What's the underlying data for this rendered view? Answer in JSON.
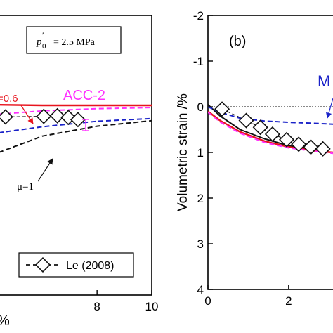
{
  "chart_data": [
    {
      "type": "line",
      "panel": "left (cropped)",
      "xlim": [
        4.4,
        10
      ],
      "ylim": [
        -0.9,
        4.2
      ],
      "x_ticks": [
        {
          "value": 8,
          "label": "8"
        },
        {
          "value": 10,
          "label": "10"
        }
      ],
      "x_axis_label_fragment": "%",
      "annotations": {
        "pressure_box": {
          "symbol": "p",
          "super": "′",
          "sub": "0",
          "rest": "= 2.5 MPa"
        },
        "mu_06": "=0.6",
        "acc2": "ACC-2",
        "mu_1": "μ=1",
        "legend": "Le (2008)"
      },
      "series": [
        {
          "color": "#e8141e",
          "style": "solid",
          "width": 2.4,
          "x": [
            4.4,
            6,
            8,
            10
          ],
          "y": [
            0.73,
            0.74,
            0.74,
            0.74
          ]
        },
        {
          "color": "#ff30ff",
          "style": "dashed",
          "width": 2,
          "x": [
            4.4,
            6,
            8,
            10
          ],
          "y": [
            0.9,
            0.84,
            0.8,
            0.78
          ]
        },
        {
          "color": "#1a22c8",
          "style": "dashed",
          "width": 2,
          "x": [
            4.4,
            6,
            8,
            10
          ],
          "y": [
            1.24,
            1.13,
            1.03,
            0.98
          ]
        },
        {
          "color": "#111111",
          "style": "dashed",
          "width": 2,
          "x": [
            4.4,
            6,
            8,
            10
          ],
          "y": [
            1.6,
            1.3,
            1.12,
            1.02
          ]
        }
      ],
      "markers": {
        "x": [
          4.65,
          6.05,
          6.55,
          6.95,
          7.3
        ],
        "y": [
          0.95,
          0.94,
          0.93,
          0.96,
          1.0
        ]
      }
    },
    {
      "type": "line",
      "panel": "right (cropped)",
      "panel_label": "(b)",
      "ylabel": "Volumetric strain /%",
      "xlim": [
        0,
        3.1
      ],
      "ylim": [
        -2,
        4
      ],
      "y_inverted": true,
      "y_ticks": [
        {
          "value": -2,
          "label": "-2"
        },
        {
          "value": -1,
          "label": "-1"
        },
        {
          "value": 0,
          "label": "0"
        },
        {
          "value": 1,
          "label": "1"
        },
        {
          "value": 2,
          "label": "2"
        },
        {
          "value": 3,
          "label": "3"
        },
        {
          "value": 4,
          "label": "4"
        }
      ],
      "x_ticks": [
        {
          "value": 0,
          "label": "0"
        },
        {
          "value": 2,
          "label": "2"
        }
      ],
      "annotations": {
        "m_label": "M"
      },
      "series": [
        {
          "color": "#111111",
          "style": "solid",
          "width": 2,
          "x": [
            0,
            0.3,
            0.8,
            1.4,
            2.0,
            2.6,
            3.1
          ],
          "y": [
            -0.05,
            0.2,
            0.5,
            0.7,
            0.85,
            0.95,
            1.0
          ]
        },
        {
          "color": "#e8141e",
          "style": "solid",
          "width": 2.4,
          "x": [
            0,
            0.3,
            0.8,
            1.4,
            2.0,
            2.6,
            3.1
          ],
          "y": [
            0.1,
            0.3,
            0.55,
            0.75,
            0.88,
            0.96,
            1.0
          ]
        },
        {
          "color": "#ff30ff",
          "style": "dashed",
          "width": 2,
          "x": [
            0,
            0.3,
            0.8,
            1.4,
            2.0,
            2.6,
            3.1
          ],
          "y": [
            0.12,
            0.33,
            0.58,
            0.78,
            0.9,
            0.97,
            1.02
          ]
        },
        {
          "color": "#1a22c8",
          "style": "dashed",
          "width": 2,
          "x": [
            0,
            0.3,
            0.8,
            1.4,
            2.0,
            2.6,
            3.1
          ],
          "y": [
            0.0,
            0.12,
            0.25,
            0.31,
            0.34,
            0.36,
            0.38
          ]
        },
        {
          "color": "#111111",
          "style": "dotted",
          "width": 1,
          "x": [
            0,
            3.1
          ],
          "y": [
            0,
            0
          ]
        }
      ],
      "markers": {
        "x": [
          0.35,
          0.95,
          1.3,
          1.6,
          1.95,
          2.25,
          2.55,
          2.85
        ],
        "y": [
          0.05,
          0.3,
          0.45,
          0.6,
          0.72,
          0.82,
          0.88,
          0.92
        ]
      }
    }
  ]
}
